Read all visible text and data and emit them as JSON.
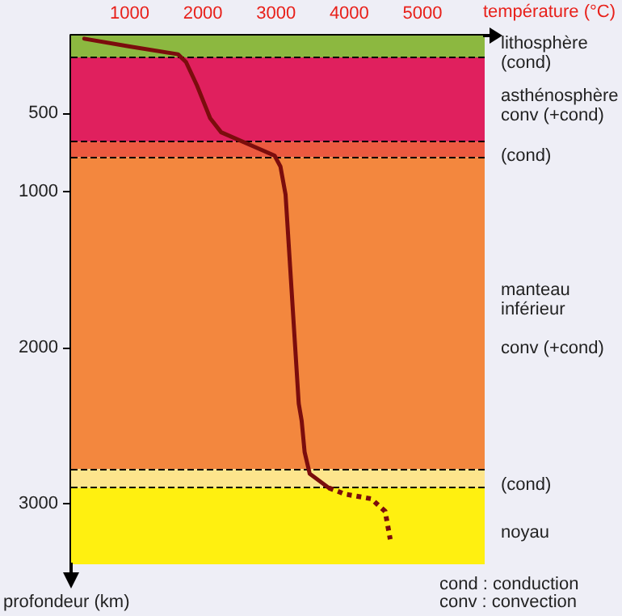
{
  "chart_data": {
    "type": "line",
    "xlabel": "température (°C)",
    "ylabel": "profondeur (km)",
    "annotations": [
      "cond : conduction",
      "conv : convection"
    ],
    "xlim": [
      200,
      5850
    ],
    "xticks": [
      1000,
      2000,
      3000,
      4000,
      5000
    ],
    "ylim": [
      3390,
      0
    ],
    "yticks": [
      500,
      1000,
      2000,
      3000
    ],
    "marker": "none",
    "series": [
      {
        "color": "#7b0d0d",
        "line_style": "solid",
        "x": [
          380,
          1000,
          1660,
          1770,
          1920,
          2100,
          2250,
          2690,
          2980,
          3060,
          3130,
          3310,
          3350,
          3390,
          3460,
          3720
        ],
        "values": [
          20,
          70,
          120,
          170,
          320,
          530,
          620,
          710,
          770,
          840,
          1020,
          2360,
          2470,
          2670,
          2810,
          2900
        ]
      },
      {
        "color": "#7b0d0d",
        "line_style": "dotted",
        "x": [
          3720,
          3940,
          4300,
          4490,
          4560
        ],
        "values": [
          2900,
          2940,
          2970,
          3050,
          3230
        ]
      }
    ],
    "bands": [
      {
        "axis": "y",
        "from": 0,
        "to": 140,
        "label": "lithosphère\n(cond)",
        "color": "#8cb840"
      },
      {
        "axis": "y",
        "from": 140,
        "to": 680,
        "label": "asthénosphère\nconv (+cond)",
        "color": "#e0205e"
      },
      {
        "axis": "y",
        "from": 680,
        "to": 780,
        "label": "(cond)",
        "color": "#ec5a40"
      },
      {
        "axis": "y",
        "from": 780,
        "to": 2780,
        "label": "manteau\ninférieur\n\nconv (+cond)",
        "color": "#f3873e"
      },
      {
        "axis": "y",
        "from": 2780,
        "to": 2900,
        "label": "(cond)",
        "color": "#fde58c"
      },
      {
        "axis": "y",
        "from": 2900,
        "to": 3390,
        "label": "noyau",
        "color": "#fff010"
      }
    ],
    "ref_lines": [
      {
        "axis": "y",
        "value": 140,
        "color": "#000000",
        "line_style": "dashed"
      },
      {
        "axis": "y",
        "value": 680,
        "color": "#000000",
        "line_style": "dashed"
      },
      {
        "axis": "y",
        "value": 780,
        "color": "#000000",
        "line_style": "dashed"
      },
      {
        "axis": "y",
        "value": 2780,
        "color": "#000000",
        "line_style": "dashed"
      },
      {
        "axis": "y",
        "value": 2900,
        "color": "#000000",
        "line_style": "dashed"
      }
    ]
  }
}
